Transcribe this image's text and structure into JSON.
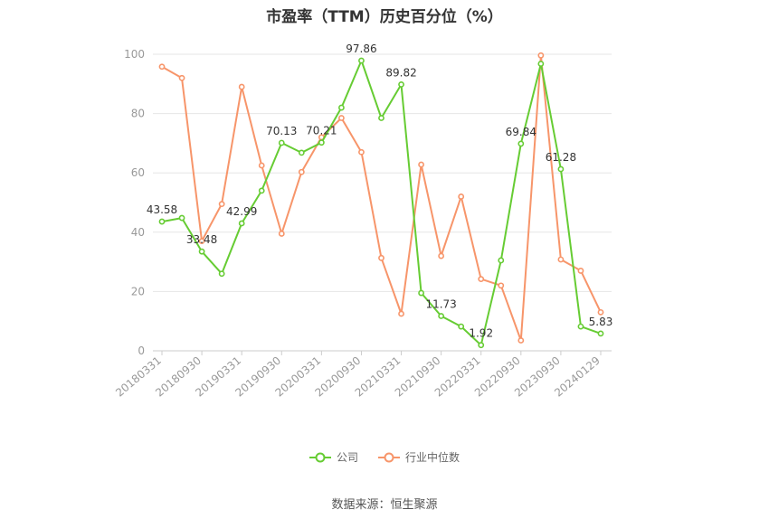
{
  "chart_data": {
    "type": "line",
    "title": "市盈率（TTM）历史百分位（%）",
    "x_tick_labels": [
      "20180331",
      "20180930",
      "20190331",
      "20190930",
      "20200331",
      "20200930",
      "20210331",
      "20210930",
      "20220331",
      "20220930",
      "20230930",
      "20240129"
    ],
    "ylim": [
      0,
      100
    ],
    "y_ticks": [
      0,
      20,
      40,
      60,
      80,
      100
    ],
    "grid": true,
    "legend_position": "bottom",
    "series": [
      {
        "name": "公司",
        "color": "#66cc33",
        "values": [
          43.58,
          44.8,
          33.48,
          26.0,
          42.99,
          54.0,
          70.13,
          66.8,
          70.21,
          82.0,
          97.86,
          78.5,
          89.82,
          19.5,
          11.73,
          8.2,
          1.92,
          30.5,
          69.84,
          96.8,
          61.28,
          8.2,
          5.83
        ],
        "data_labels": {
          "0": "43.58",
          "2": "33.48",
          "4": "42.99",
          "6": "70.13",
          "8": "70.21",
          "10": "97.86",
          "12": "89.82",
          "14": "11.73",
          "16": "1.92",
          "18": "69.84",
          "20": "61.28",
          "22": "5.83"
        }
      },
      {
        "name": "行业中位数",
        "color": "#f7956a",
        "values": [
          95.8,
          92.0,
          37.0,
          49.5,
          89.0,
          62.5,
          39.5,
          60.3,
          72.0,
          78.5,
          67.0,
          31.3,
          12.5,
          62.8,
          32.0,
          52.0,
          24.2,
          22.0,
          3.5,
          99.6,
          30.8,
          27.0,
          13.0
        ]
      }
    ]
  },
  "legend": {
    "company": "公司",
    "industry": "行业中位数"
  },
  "source": "数据来源：恒生聚源"
}
